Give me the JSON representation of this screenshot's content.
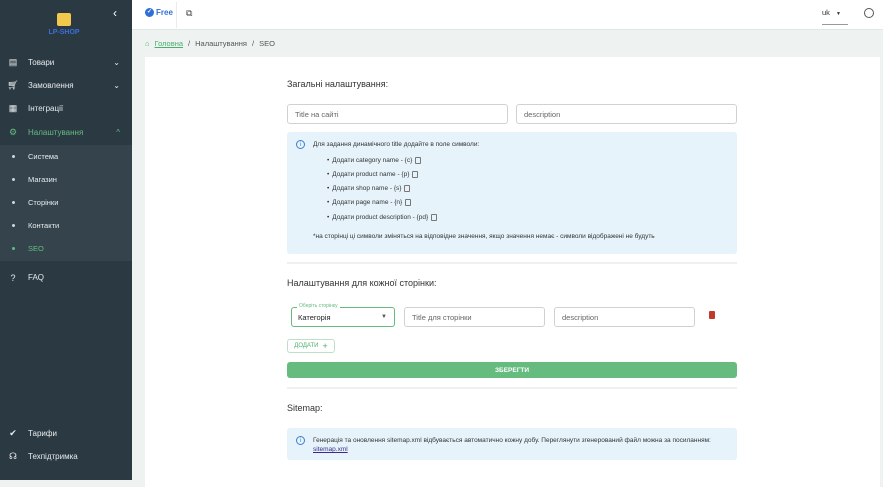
{
  "sidebar": {
    "logo": "LP-SHOP",
    "items": [
      {
        "label": "Товари",
        "icon": "archive-icon"
      },
      {
        "label": "Замовлення",
        "icon": "cart-icon"
      },
      {
        "label": "Інтеграції",
        "icon": "widgets-icon"
      },
      {
        "label": "Налаштування",
        "icon": "gear-icon"
      }
    ],
    "sub": [
      "Система",
      "Магазин",
      "Сторінки",
      "Контакти",
      "SEO"
    ],
    "faq": "FAQ",
    "tariffs": "Тарифи",
    "support": "Техпідтримка"
  },
  "topbar": {
    "plan": "Free",
    "lang": "uk"
  },
  "breadcrumb": {
    "home": "Головна",
    "section": "Налаштування",
    "current": "SEO"
  },
  "general": {
    "title": "Загальні налаштування:",
    "title_placeholder": "Title на сайті",
    "desc_placeholder": "description",
    "info_intro": "Для задання динамічного title додайте в поле символи:",
    "items": [
      "Додати category name - {c}",
      "Додати product name - {p}",
      "Додати shop name - {s}",
      "Додати page name - {n}",
      "Додати product description - {pd}"
    ],
    "note": "*на сторінці ці символи зміняться на відповідне значення, якщо значення немає - символи відображені не будуть"
  },
  "per_page": {
    "title": "Налаштування для кожної сторінки:",
    "select_label": "Оберіть сторінку",
    "select_value": "Категорія",
    "title_placeholder": "Title для сторінки",
    "desc_placeholder": "description",
    "add": "ДОДАТИ",
    "save": "ЗБЕРЕГТИ"
  },
  "sitemap": {
    "title": "Sitemap:",
    "text": "Генерація та оновлення sitemap.xml відбувається автоматично кожну добу. Переглянути згенерований файл можна за посиланням:",
    "link": "sitemap.xml"
  },
  "colors": {
    "accent": "#66bb7f",
    "sidebar": "#2b3942",
    "info": "#e6f3fa"
  }
}
